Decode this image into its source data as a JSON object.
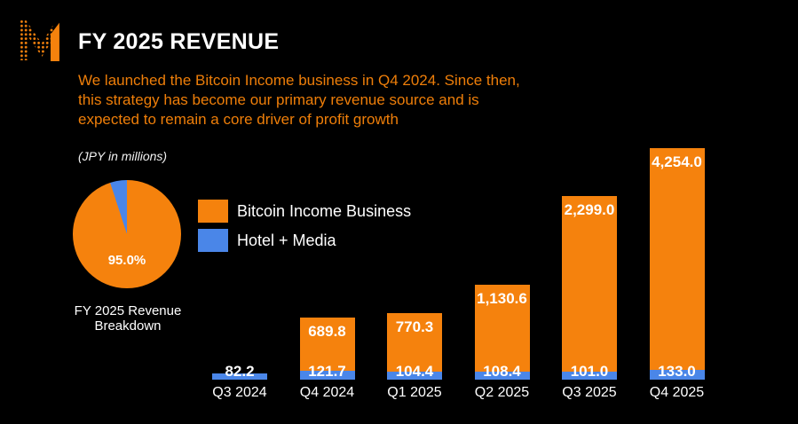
{
  "colors": {
    "background": "#000000",
    "orange": "#f5820d",
    "blue": "#4a86e8",
    "subtitle_text": "#ee7e09",
    "text": "#ffffff"
  },
  "header": {
    "title": "FY 2025 REVENUE",
    "logo": "m-dotted-logo"
  },
  "subtitle": {
    "lines": [
      "We launched the Bitcoin Income business in Q4 2024. Since then,",
      "this strategy has become our primary revenue source and is",
      "expected to remain a core driver of profit growth"
    ]
  },
  "units_note": "(JPY in millions)",
  "pie": {
    "percent_label": "95.0%",
    "caption_lines": [
      "FY 2025 Revenue",
      "Breakdown"
    ]
  },
  "legend": {
    "items": [
      {
        "label": "Bitcoin Income Business",
        "color": "#f5820d"
      },
      {
        "label": "Hotel + Media",
        "color": "#4a86e8"
      }
    ]
  },
  "chart_data": [
    {
      "type": "pie",
      "title": "FY 2025 Revenue Breakdown",
      "slices": [
        {
          "label": "Bitcoin Income Business",
          "value": 95.0,
          "color": "#f5820d",
          "display": "95.0%"
        },
        {
          "label": "Hotel + Media",
          "value": 5.0,
          "color": "#4a86e8",
          "display": ""
        }
      ],
      "legend_position": "right of pie",
      "units": "JPY in millions"
    },
    {
      "type": "bar",
      "stacked": true,
      "categories": [
        "Q3 2024",
        "Q4 2024",
        "Q1 2025",
        "Q2 2025",
        "Q3 2025",
        "Q4 2025"
      ],
      "series": [
        {
          "name": "Hotel + Media",
          "color": "#4a86e8",
          "values": [
            82.2,
            121.7,
            104.4,
            108.4,
            101.0,
            133.0
          ],
          "labels": [
            "82.2",
            "121.7",
            "104.4",
            "108.4",
            "101.0",
            "133.0"
          ]
        },
        {
          "name": "Bitcoin Income Business",
          "color": "#f5820d",
          "values": [
            0,
            689.8,
            770.3,
            1130.6,
            2299.0,
            4254.0
          ],
          "labels": [
            "",
            "689.8",
            "770.3",
            "1,130.6",
            "2,299.0",
            "4,254.0"
          ]
        }
      ],
      "title": "",
      "xlabel": "",
      "ylabel": "",
      "units": "JPY in millions",
      "grid": false,
      "note": "tallest bar (Q4 2025) is visually truncated in source graphic"
    }
  ]
}
